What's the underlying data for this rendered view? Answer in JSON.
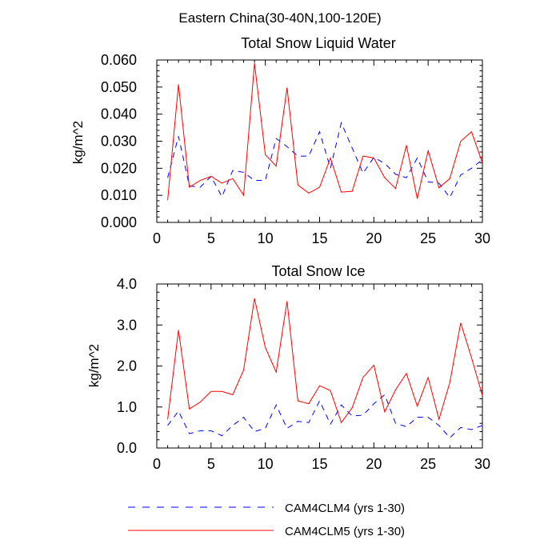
{
  "figure_title": "Eastern China(30-40N,100-120E)",
  "legend": [
    {
      "label": "CAM4CLM4 (yrs 1-30)",
      "color": "#0000ff",
      "dash": "dashed"
    },
    {
      "label": "CAM4CLM5 (yrs 1-30)",
      "color": "#ff0000",
      "dash": "solid"
    }
  ],
  "chart_data": [
    {
      "type": "line",
      "title": "Total Snow Liquid Water",
      "xlabel": "",
      "ylabel": "kg/m^2",
      "xlim": [
        0,
        30
      ],
      "ylim": [
        0,
        0.06
      ],
      "x_ticks": [
        0,
        5,
        10,
        15,
        20,
        25,
        30
      ],
      "y_ticks": [
        0,
        0.01,
        0.02,
        0.03,
        0.04,
        0.05,
        0.06
      ],
      "y_tick_labels": [
        "0.000",
        "0.010",
        "0.020",
        "0.030",
        "0.040",
        "0.050",
        "0.060"
      ],
      "x": [
        1,
        2,
        3,
        4,
        5,
        6,
        7,
        8,
        9,
        10,
        11,
        12,
        13,
        14,
        15,
        16,
        17,
        18,
        19,
        20,
        21,
        22,
        23,
        24,
        25,
        26,
        27,
        28,
        29,
        30
      ],
      "series": [
        {
          "name": "CAM4CLM4 (yrs 1-30)",
          "color": "#0000ff",
          "dash": "dashed",
          "values": [
            0.0165,
            0.0318,
            0.0135,
            0.013,
            0.017,
            0.0095,
            0.0192,
            0.0185,
            0.0155,
            0.0155,
            0.031,
            0.028,
            0.0245,
            0.0245,
            0.0335,
            0.02,
            0.0368,
            0.0275,
            0.0182,
            0.024,
            0.0218,
            0.0178,
            0.0165,
            0.0238,
            0.015,
            0.0145,
            0.0092,
            0.0175,
            0.02,
            0.0232
          ]
        },
        {
          "name": "CAM4CLM5 (yrs 1-30)",
          "color": "#ff0000",
          "dash": "solid",
          "values": [
            0.0082,
            0.051,
            0.013,
            0.0155,
            0.017,
            0.0145,
            0.0162,
            0.01,
            0.0588,
            0.025,
            0.0208,
            0.0498,
            0.0138,
            0.0108,
            0.013,
            0.0238,
            0.0112,
            0.0115,
            0.0245,
            0.0238,
            0.0165,
            0.0125,
            0.0285,
            0.0088,
            0.0265,
            0.0128,
            0.0162,
            0.03,
            0.0335,
            0.022
          ]
        }
      ]
    },
    {
      "type": "line",
      "title": "Total Snow Ice",
      "xlabel": "",
      "ylabel": "kg/m^2",
      "xlim": [
        0,
        30
      ],
      "ylim": [
        0,
        4
      ],
      "x_ticks": [
        0,
        5,
        10,
        15,
        20,
        25,
        30
      ],
      "y_ticks": [
        0,
        1,
        2,
        3,
        4
      ],
      "y_tick_labels": [
        "0.0",
        "1.0",
        "2.0",
        "3.0",
        "4.0"
      ],
      "x": [
        1,
        2,
        3,
        4,
        5,
        6,
        7,
        8,
        9,
        10,
        11,
        12,
        13,
        14,
        15,
        16,
        17,
        18,
        19,
        20,
        21,
        22,
        23,
        24,
        25,
        26,
        27,
        28,
        29,
        30
      ],
      "series": [
        {
          "name": "CAM4CLM4 (yrs 1-30)",
          "color": "#0000ff",
          "dash": "dashed",
          "values": [
            0.55,
            0.9,
            0.35,
            0.42,
            0.42,
            0.3,
            0.55,
            0.75,
            0.4,
            0.48,
            1.05,
            0.48,
            0.65,
            0.62,
            1.15,
            0.58,
            1.05,
            0.78,
            0.8,
            1.08,
            1.3,
            0.6,
            0.52,
            0.75,
            0.75,
            0.55,
            0.25,
            0.5,
            0.45,
            0.55
          ]
        },
        {
          "name": "CAM4CLM5 (yrs 1-30)",
          "color": "#ff0000",
          "dash": "solid",
          "values": [
            0.7,
            2.88,
            0.95,
            1.12,
            1.38,
            1.38,
            1.3,
            1.9,
            3.65,
            2.45,
            1.85,
            3.58,
            1.15,
            1.08,
            1.52,
            1.4,
            0.62,
            0.98,
            1.72,
            2.02,
            0.88,
            1.42,
            1.82,
            1.02,
            1.72,
            0.7,
            1.6,
            3.05,
            2.2,
            1.28
          ]
        }
      ]
    }
  ]
}
